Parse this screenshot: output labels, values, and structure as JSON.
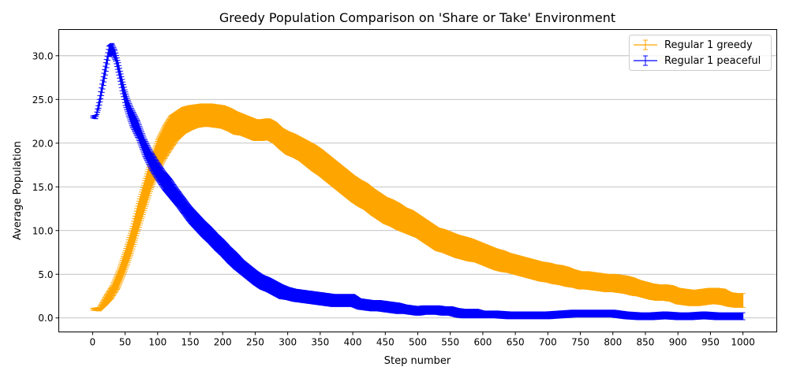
{
  "chart_data": {
    "type": "line",
    "title": "Greedy Population Comparison on 'Share or Take' Environment",
    "xlabel": "Step number",
    "ylabel": "Average Population",
    "xlim": [
      -52,
      1052
    ],
    "ylim": [
      -1.6,
      33.0
    ],
    "x_ticks": [
      0,
      50,
      100,
      150,
      200,
      250,
      300,
      350,
      400,
      450,
      500,
      550,
      600,
      650,
      700,
      750,
      800,
      850,
      900,
      950,
      1000
    ],
    "y_ticks": [
      0.0,
      5.0,
      10.0,
      15.0,
      20.0,
      25.0,
      30.0
    ],
    "y_tick_labels": [
      "0.0",
      "5.0",
      "10.0",
      "15.0",
      "20.0",
      "25.0",
      "30.0"
    ],
    "grid": "horizontal",
    "legend_position": "top-right",
    "error_bars": true,
    "series": [
      {
        "name": "Regular 1 greedy",
        "color": "#ffa500",
        "points": [
          [
            0,
            1.0,
            0.1
          ],
          [
            10,
            1.0,
            0.2
          ],
          [
            20,
            2.0,
            0.5
          ],
          [
            30,
            3.0,
            0.7
          ],
          [
            40,
            4.5,
            1.0
          ],
          [
            50,
            6.5,
            1.2
          ],
          [
            60,
            8.8,
            1.4
          ],
          [
            70,
            11.5,
            1.6
          ],
          [
            80,
            14.0,
            1.7
          ],
          [
            90,
            16.5,
            1.8
          ],
          [
            100,
            18.5,
            1.9
          ],
          [
            110,
            20.0,
            1.9
          ],
          [
            120,
            21.2,
            1.9
          ],
          [
            130,
            22.0,
            1.6
          ],
          [
            140,
            22.6,
            1.5
          ],
          [
            150,
            22.9,
            1.4
          ],
          [
            160,
            23.1,
            1.3
          ],
          [
            170,
            23.2,
            1.3
          ],
          [
            180,
            23.2,
            1.3
          ],
          [
            190,
            23.1,
            1.3
          ],
          [
            200,
            23.0,
            1.3
          ],
          [
            210,
            22.7,
            1.3
          ],
          [
            220,
            22.3,
            1.3
          ],
          [
            230,
            22.1,
            1.2
          ],
          [
            240,
            21.8,
            1.2
          ],
          [
            250,
            21.5,
            1.2
          ],
          [
            260,
            21.5,
            1.2
          ],
          [
            270,
            21.6,
            1.2
          ],
          [
            280,
            21.2,
            1.2
          ],
          [
            290,
            20.5,
            1.2
          ],
          [
            300,
            20.0,
            1.3
          ],
          [
            310,
            19.7,
            1.3
          ],
          [
            320,
            19.3,
            1.3
          ],
          [
            330,
            18.8,
            1.4
          ],
          [
            340,
            18.3,
            1.5
          ],
          [
            350,
            17.8,
            1.5
          ],
          [
            360,
            17.2,
            1.5
          ],
          [
            370,
            16.6,
            1.5
          ],
          [
            380,
            16.0,
            1.5
          ],
          [
            390,
            15.4,
            1.5
          ],
          [
            400,
            14.8,
            1.5
          ],
          [
            410,
            14.3,
            1.5
          ],
          [
            420,
            13.9,
            1.5
          ],
          [
            430,
            13.3,
            1.5
          ],
          [
            440,
            12.8,
            1.5
          ],
          [
            450,
            12.3,
            1.5
          ],
          [
            460,
            12.0,
            1.5
          ],
          [
            470,
            11.6,
            1.5
          ],
          [
            480,
            11.2,
            1.4
          ],
          [
            490,
            10.9,
            1.4
          ],
          [
            500,
            10.5,
            1.3
          ],
          [
            510,
            10.0,
            1.3
          ],
          [
            520,
            9.5,
            1.3
          ],
          [
            530,
            9.0,
            1.3
          ],
          [
            540,
            8.8,
            1.3
          ],
          [
            550,
            8.5,
            1.3
          ],
          [
            560,
            8.2,
            1.3
          ],
          [
            570,
            8.0,
            1.3
          ],
          [
            580,
            7.8,
            1.3
          ],
          [
            590,
            7.6,
            1.2
          ],
          [
            600,
            7.3,
            1.2
          ],
          [
            610,
            7.0,
            1.2
          ],
          [
            620,
            6.7,
            1.2
          ],
          [
            630,
            6.5,
            1.2
          ],
          [
            640,
            6.3,
            1.1
          ],
          [
            650,
            6.1,
            1.1
          ],
          [
            660,
            5.9,
            1.1
          ],
          [
            670,
            5.7,
            1.1
          ],
          [
            680,
            5.5,
            1.1
          ],
          [
            690,
            5.3,
            1.1
          ],
          [
            700,
            5.2,
            1.1
          ],
          [
            710,
            5.0,
            1.1
          ],
          [
            720,
            4.9,
            1.1
          ],
          [
            730,
            4.7,
            1.1
          ],
          [
            740,
            4.5,
            1.0
          ],
          [
            750,
            4.3,
            1.0
          ],
          [
            760,
            4.3,
            1.0
          ],
          [
            770,
            4.2,
            1.0
          ],
          [
            780,
            4.1,
            1.0
          ],
          [
            790,
            4.0,
            1.0
          ],
          [
            800,
            4.0,
            1.0
          ],
          [
            810,
            3.9,
            1.0
          ],
          [
            820,
            3.8,
            1.0
          ],
          [
            830,
            3.6,
            1.0
          ],
          [
            840,
            3.4,
            0.9
          ],
          [
            850,
            3.2,
            0.9
          ],
          [
            860,
            3.0,
            0.9
          ],
          [
            870,
            2.9,
            0.9
          ],
          [
            880,
            2.9,
            0.9
          ],
          [
            890,
            2.8,
            0.9
          ],
          [
            900,
            2.5,
            0.9
          ],
          [
            910,
            2.4,
            0.9
          ],
          [
            920,
            2.3,
            0.9
          ],
          [
            930,
            2.3,
            0.9
          ],
          [
            940,
            2.4,
            0.9
          ],
          [
            950,
            2.5,
            0.9
          ],
          [
            960,
            2.5,
            0.9
          ],
          [
            970,
            2.4,
            0.9
          ],
          [
            980,
            2.1,
            0.8
          ],
          [
            990,
            2.0,
            0.8
          ],
          [
            1000,
            2.0,
            0.8
          ]
        ]
      },
      {
        "name": "Regular 1 peaceful",
        "color": "#0000ff",
        "points": [
          [
            0,
            23.0,
            0.1
          ],
          [
            5,
            23.0,
            0.2
          ],
          [
            10,
            24.5,
            0.5
          ],
          [
            15,
            26.5,
            0.7
          ],
          [
            20,
            28.5,
            0.7
          ],
          [
            25,
            30.5,
            0.6
          ],
          [
            30,
            30.8,
            0.6
          ],
          [
            35,
            30.0,
            0.6
          ],
          [
            40,
            28.5,
            0.7
          ],
          [
            45,
            26.8,
            0.8
          ],
          [
            50,
            25.2,
            0.9
          ],
          [
            55,
            24.0,
            0.9
          ],
          [
            60,
            23.0,
            1.0
          ],
          [
            70,
            21.5,
            1.0
          ],
          [
            80,
            19.5,
            1.0
          ],
          [
            90,
            18.0,
            1.0
          ],
          [
            100,
            16.8,
            1.0
          ],
          [
            110,
            15.7,
            1.0
          ],
          [
            120,
            14.8,
            1.0
          ],
          [
            130,
            13.8,
            0.9
          ],
          [
            140,
            12.8,
            0.9
          ],
          [
            150,
            11.8,
            0.9
          ],
          [
            160,
            11.0,
            0.9
          ],
          [
            170,
            10.2,
            0.9
          ],
          [
            180,
            9.5,
            0.9
          ],
          [
            190,
            8.7,
            0.9
          ],
          [
            200,
            8.0,
            0.9
          ],
          [
            210,
            7.2,
            0.9
          ],
          [
            220,
            6.5,
            0.9
          ],
          [
            230,
            5.8,
            0.8
          ],
          [
            240,
            5.2,
            0.8
          ],
          [
            250,
            4.6,
            0.8
          ],
          [
            260,
            4.1,
            0.8
          ],
          [
            270,
            3.8,
            0.8
          ],
          [
            280,
            3.4,
            0.8
          ],
          [
            290,
            3.0,
            0.8
          ],
          [
            300,
            2.8,
            0.7
          ],
          [
            310,
            2.6,
            0.7
          ],
          [
            320,
            2.5,
            0.7
          ],
          [
            330,
            2.4,
            0.7
          ],
          [
            340,
            2.3,
            0.7
          ],
          [
            350,
            2.2,
            0.7
          ],
          [
            360,
            2.1,
            0.7
          ],
          [
            370,
            2.0,
            0.7
          ],
          [
            380,
            2.0,
            0.7
          ],
          [
            390,
            2.0,
            0.7
          ],
          [
            400,
            2.0,
            0.7
          ],
          [
            410,
            1.6,
            0.6
          ],
          [
            420,
            1.5,
            0.6
          ],
          [
            430,
            1.4,
            0.6
          ],
          [
            440,
            1.4,
            0.6
          ],
          [
            450,
            1.3,
            0.6
          ],
          [
            460,
            1.2,
            0.6
          ],
          [
            470,
            1.1,
            0.6
          ],
          [
            480,
            1.0,
            0.5
          ],
          [
            490,
            0.9,
            0.5
          ],
          [
            500,
            0.8,
            0.5
          ],
          [
            510,
            0.9,
            0.5
          ],
          [
            520,
            0.9,
            0.5
          ],
          [
            530,
            0.9,
            0.5
          ],
          [
            540,
            0.8,
            0.5
          ],
          [
            550,
            0.8,
            0.5
          ],
          [
            560,
            0.6,
            0.5
          ],
          [
            570,
            0.5,
            0.5
          ],
          [
            580,
            0.5,
            0.5
          ],
          [
            590,
            0.5,
            0.5
          ],
          [
            600,
            0.4,
            0.4
          ],
          [
            620,
            0.4,
            0.4
          ],
          [
            640,
            0.3,
            0.4
          ],
          [
            660,
            0.3,
            0.4
          ],
          [
            680,
            0.3,
            0.4
          ],
          [
            700,
            0.3,
            0.4
          ],
          [
            720,
            0.4,
            0.4
          ],
          [
            740,
            0.5,
            0.4
          ],
          [
            760,
            0.5,
            0.4
          ],
          [
            780,
            0.5,
            0.4
          ],
          [
            800,
            0.5,
            0.4
          ],
          [
            810,
            0.4,
            0.4
          ],
          [
            820,
            0.3,
            0.4
          ],
          [
            840,
            0.2,
            0.4
          ],
          [
            860,
            0.2,
            0.4
          ],
          [
            880,
            0.3,
            0.4
          ],
          [
            900,
            0.2,
            0.4
          ],
          [
            920,
            0.2,
            0.4
          ],
          [
            940,
            0.3,
            0.4
          ],
          [
            960,
            0.2,
            0.4
          ],
          [
            980,
            0.2,
            0.4
          ],
          [
            1000,
            0.2,
            0.4
          ]
        ]
      }
    ]
  }
}
